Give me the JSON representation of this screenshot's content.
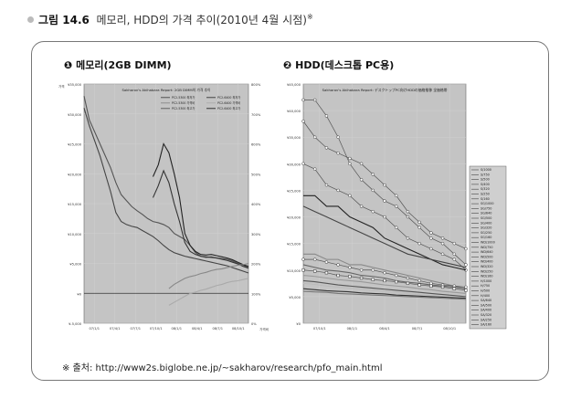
{
  "figure": {
    "label": "그림 14.6",
    "caption": "메모리, HDD의 가격 추이(2010년 4월 시점)",
    "footnote_mark": "※"
  },
  "source": {
    "mark": "※ 출처:",
    "url": "http://www2s.biglobe.ne.jp/~sakharov/research/pfo_main.html"
  },
  "chart_data": [
    {
      "panel_label": "❶ 메모리(2GB DIMM)",
      "type": "line",
      "title": "Sakharov's Akihabara Report: 2GB DIMM의 가격 추이",
      "ylabel": "가격",
      "y_ticks": [
        "¥35,000",
        "¥30,000",
        "¥25,000",
        "¥20,000",
        "¥15,000",
        "¥10,000",
        "¥5,000",
        "¥0",
        "¥-5,000"
      ],
      "y2_ticks": [
        "800%",
        "700%",
        "600%",
        "500%",
        "400%",
        "300%",
        "200%",
        "100%",
        "0%"
      ],
      "y2_label": "가격비",
      "x_ticks": [
        "07/1/1",
        "07/4/1",
        "07/7/1",
        "07/10/1",
        "08/1/1",
        "08/4/1",
        "08/7/1",
        "08/10/1"
      ],
      "legend": [
        "PC2-5300 최저가",
        "PC2-6400 최저가",
        "PC2-5300 가격비",
        "PC2-6400 가격비",
        "PC2-5300 최고가",
        "PC2-6400 최고가"
      ],
      "ylim": [
        -5000,
        35000
      ],
      "x": [
        0,
        0.25,
        0.5,
        0.75,
        1,
        1.25,
        1.5,
        1.75,
        2,
        2.25,
        2.5,
        2.75,
        3,
        3.25,
        3.5,
        3.75,
        4,
        4.25,
        4.5,
        4.75,
        5,
        5.25,
        5.5,
        5.75,
        6,
        6.25,
        6.5,
        6.75,
        7,
        7.25,
        7.5,
        7.75
      ],
      "series": [
        {
          "name": "PC2-5300 최고가",
          "color": "#555555",
          "values": [
            33000,
            29000,
            27000,
            25000,
            23000,
            21000,
            18500,
            16500,
            15500,
            14500,
            13800,
            13200,
            12500,
            12000,
            11800,
            11500,
            11000,
            10000,
            9500,
            9000,
            8000,
            6800,
            6200,
            6000,
            6100,
            5900,
            5800,
            5700,
            5400,
            5000,
            4700,
            4300
          ]
        },
        {
          "name": "PC2-6400 최고가",
          "color": "#222222",
          "values": [
            null,
            null,
            null,
            null,
            null,
            null,
            null,
            null,
            null,
            null,
            null,
            null,
            null,
            19500,
            21500,
            25000,
            23500,
            20000,
            16000,
            10000,
            8000,
            7000,
            6500,
            6400,
            6500,
            6300,
            6100,
            5900,
            5600,
            5200,
            4800,
            4500
          ]
        },
        {
          "name": "PC2-5300 최저가",
          "color": "#444444",
          "values": [
            31000,
            28000,
            25500,
            23000,
            20000,
            17000,
            13500,
            12000,
            11500,
            11200,
            11000,
            10500,
            10000,
            9500,
            8800,
            8000,
            7300,
            6800,
            6500,
            6200,
            6000,
            5800,
            5600,
            5400,
            5200,
            5000,
            4800,
            4600,
            4300,
            4000,
            3700,
            3400
          ]
        },
        {
          "name": "PC2-6400 최저가",
          "color": "#333333",
          "values": [
            null,
            null,
            null,
            null,
            null,
            null,
            null,
            null,
            null,
            null,
            null,
            null,
            null,
            16000,
            18000,
            20500,
            18500,
            15000,
            12000,
            8500,
            7000,
            6500,
            6200,
            6100,
            6000,
            5900,
            5700,
            5500,
            5200,
            4900,
            4500,
            4200
          ]
        },
        {
          "name": "PC2-5300 가격비",
          "color": "#888888",
          "values": [
            null,
            null,
            null,
            null,
            null,
            null,
            null,
            null,
            null,
            null,
            null,
            null,
            null,
            null,
            null,
            null,
            800,
            1500,
            2000,
            2500,
            2800,
            3000,
            3300,
            3500,
            3800,
            4000,
            4100,
            4300,
            4500,
            4700,
            4800,
            5000
          ]
        },
        {
          "name": "PC2-6400 가격비",
          "color": "#aaaaaa",
          "values": [
            null,
            null,
            null,
            null,
            null,
            null,
            null,
            null,
            null,
            null,
            null,
            null,
            null,
            null,
            null,
            null,
            -2000,
            -1500,
            -1000,
            -500,
            0,
            200,
            500,
            700,
            1000,
            1300,
            1500,
            1800,
            2000,
            2100,
            2300,
            2500
          ]
        }
      ]
    },
    {
      "panel_label": "❷ HDD(데스크톱 PC용)",
      "type": "line",
      "title": "Sakharov's Akihabara Report: デスクトップPC向けHDDの価格推移 全価格帯",
      "y_ticks": [
        "¥45,000",
        "¥40,000",
        "¥35,000",
        "¥30,000",
        "¥25,000",
        "¥20,000",
        "¥15,000",
        "¥10,000",
        "¥5,000",
        "¥0"
      ],
      "x_ticks": [
        "07/10/1",
        "08/1/1",
        "08/4/1",
        "08/7/1",
        "08/10/1"
      ],
      "legend": [
        "S/1000",
        "S/750",
        "S/500",
        "S/400",
        "S/320",
        "S/250",
        "S/160",
        "SG/1000",
        "SG/750",
        "SG/640",
        "SG/500",
        "SG/400",
        "SG/320",
        "SG/250",
        "SG/160",
        "WD/1000",
        "WD/750",
        "WD/640",
        "WD/500",
        "WD/400",
        "WD/320",
        "WD/250",
        "WD/160",
        "H/1000",
        "H/750",
        "H/500",
        "H/400",
        "SA/640",
        "SA/500",
        "SA/400",
        "SA/320",
        "SA/250",
        "SA/160"
      ],
      "ylim": [
        0,
        45000
      ],
      "x": [
        0,
        1,
        2,
        3,
        4,
        5,
        6,
        7,
        8,
        9,
        10,
        11,
        12,
        13,
        14
      ],
      "series": [
        {
          "name": "S/1000",
          "color": "#ffffff",
          "marker": "o",
          "values": [
            42000,
            42000,
            39000,
            35000,
            30000,
            27000,
            25000,
            23000,
            22000,
            20000,
            18000,
            16000,
            15000,
            13000,
            11000
          ]
        },
        {
          "name": "S/750",
          "color": "#ffffff",
          "marker": "o",
          "values": [
            38000,
            35000,
            33000,
            32000,
            31000,
            30000,
            28000,
            26000,
            24000,
            21000,
            19000,
            17000,
            16000,
            15000,
            14000
          ]
        },
        {
          "name": "SG/1000",
          "color": "#ffffff",
          "marker": "o",
          "values": [
            30000,
            29000,
            26000,
            25000,
            24000,
            22000,
            21000,
            20000,
            18000,
            16000,
            15000,
            14000,
            13000,
            12000,
            10000
          ]
        },
        {
          "name": "S/500",
          "color": "#222222",
          "values": [
            24000,
            24000,
            22000,
            22000,
            20000,
            19000,
            18000,
            16000,
            15000,
            14000,
            13000,
            12000,
            11000,
            10500,
            10000
          ]
        },
        {
          "name": "WD/1000",
          "color": "#444444",
          "values": [
            22000,
            21000,
            20000,
            19000,
            18000,
            17000,
            16000,
            15000,
            14000,
            13000,
            12500,
            12000,
            11500,
            11000,
            10500
          ]
        },
        {
          "name": "SG/750",
          "color": "#888888",
          "values": [
            13000,
            13000,
            12000,
            12000,
            11000,
            11000,
            10500,
            10000,
            9500,
            9000,
            8500,
            8000,
            7500,
            7000,
            6500
          ]
        },
        {
          "name": "WD/750",
          "color": "#ffffff",
          "marker": "o",
          "values": [
            12000,
            12000,
            11500,
            11000,
            10500,
            10000,
            10000,
            9500,
            9000,
            8500,
            8000,
            7500,
            7200,
            7000,
            6800
          ]
        },
        {
          "name": "S/400",
          "color": "#666666",
          "values": [
            11000,
            10500,
            10000,
            9800,
            9500,
            9000,
            8800,
            8500,
            8000,
            7700,
            7500,
            7200,
            7000,
            6800,
            6500
          ]
        },
        {
          "name": "H/500",
          "color": "#ffffff",
          "marker": "s",
          "values": [
            10000,
            9800,
            9500,
            9000,
            8800,
            8500,
            8200,
            8000,
            7800,
            7500,
            7200,
            7000,
            6800,
            6500,
            6200
          ]
        },
        {
          "name": "SA/320",
          "color": "#999999",
          "values": [
            9000,
            8800,
            8500,
            8200,
            8000,
            7800,
            7500,
            7200,
            7000,
            6800,
            6500,
            6300,
            6000,
            5800,
            5600
          ]
        },
        {
          "name": "S/250",
          "color": "#555555",
          "values": [
            8000,
            7800,
            7500,
            7200,
            7000,
            6800,
            6600,
            6400,
            6200,
            6000,
            5800,
            5600,
            5400,
            5200,
            5000
          ]
        },
        {
          "name": "SA/250",
          "color": "#bbbbbb",
          "values": [
            7500,
            7300,
            7000,
            6800,
            6600,
            6400,
            6200,
            6000,
            5800,
            5600,
            5400,
            5200,
            5000,
            4900,
            4800
          ]
        },
        {
          "name": "S/160",
          "color": "#333333",
          "values": [
            6500,
            6300,
            6100,
            6000,
            5900,
            5700,
            5600,
            5500,
            5300,
            5200,
            5100,
            5000,
            4900,
            4800,
            4700
          ]
        },
        {
          "name": "SA/160",
          "color": "#777777",
          "values": [
            6000,
            5900,
            5800,
            5600,
            5500,
            5400,
            5300,
            5200,
            5100,
            5000,
            4900,
            4800,
            4700,
            4600,
            4500
          ]
        }
      ]
    }
  ]
}
